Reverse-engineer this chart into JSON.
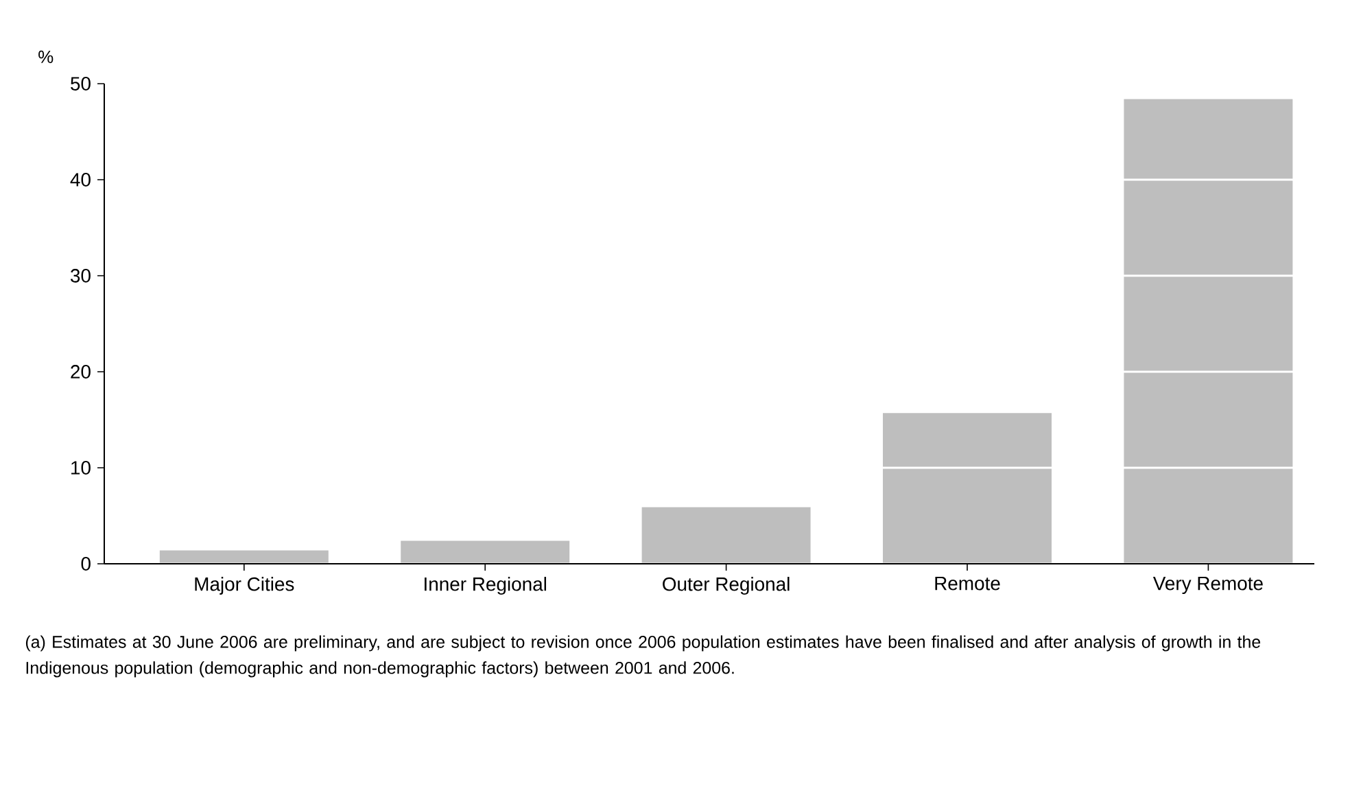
{
  "chart_data": {
    "type": "bar",
    "ylabel": "%",
    "categories": [
      "Major Cities",
      "Inner Regional",
      "Outer Regional",
      "Remote",
      "Very Remote"
    ],
    "values": [
      1.4,
      2.4,
      5.9,
      15.7,
      48.4
    ],
    "color": "#bebebe",
    "ylim": [
      0,
      50
    ],
    "yticks": [
      0,
      10,
      20,
      30,
      40,
      50
    ],
    "grid": "y",
    "annotations": [
      "(a) Estimates at 30 June 2006 are preliminary, and are subject to revision once 2006 population estimates have been finalised and after analysis of growth in the Indigenous population (demographic and non-demographic factors) between 2001 and 2006."
    ]
  }
}
